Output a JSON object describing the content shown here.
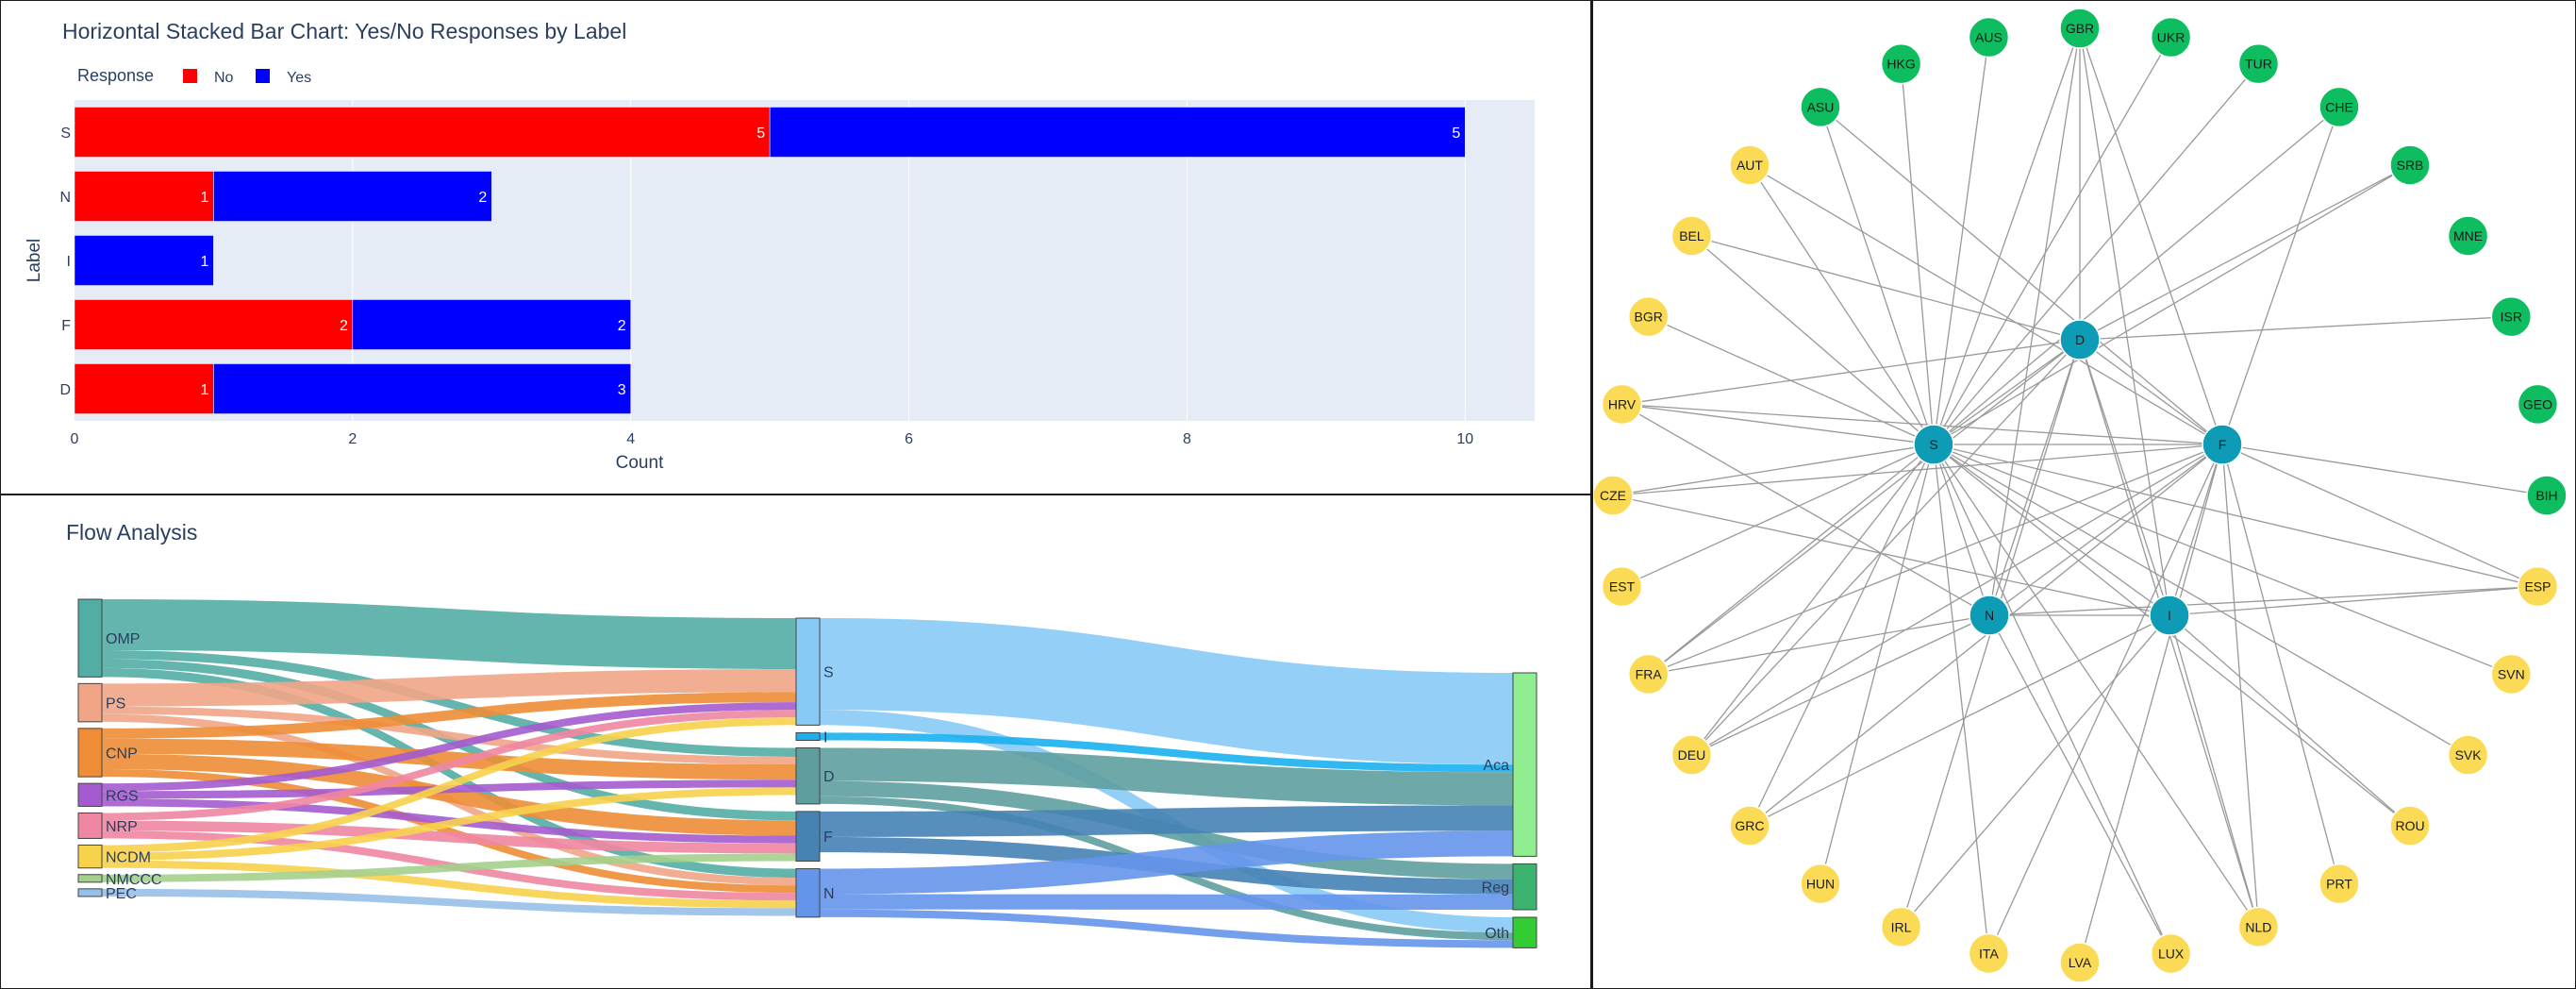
{
  "colors": {
    "no": "#ff0000",
    "yes": "#0000ff",
    "plot_bg": "#e5ecf6",
    "grid": "#ffffff",
    "text": "#2a3f5f",
    "edge": "#999999",
    "hub": "#0e9bb5",
    "green_node": "#0dbd5f",
    "yellow_node": "#fbdb55"
  },
  "bar_chart": {
    "title": "Horizontal Stacked Bar Chart: Yes/No Responses by Label",
    "legend_title": "Response",
    "xlabel": "Count",
    "ylabel": "Label"
  },
  "sankey": {
    "title": "Flow Analysis"
  },
  "chart_data": [
    {
      "type": "bar",
      "orientation": "horizontal",
      "stacked": true,
      "title": "Horizontal Stacked Bar Chart: Yes/No Responses by Label",
      "xlabel": "Count",
      "ylabel": "Label",
      "categories": [
        "S",
        "N",
        "I",
        "F",
        "D"
      ],
      "series": [
        {
          "name": "No",
          "values": [
            5,
            1,
            0,
            2,
            1
          ]
        },
        {
          "name": "Yes",
          "values": [
            5,
            2,
            1,
            2,
            3
          ]
        }
      ],
      "xlim": [
        0,
        10.5
      ],
      "xticks": [
        "0",
        "2",
        "4",
        "6",
        "8",
        "10"
      ],
      "legend": "top-left, horizontal",
      "grid": true
    },
    {
      "type": "sankey",
      "title": "Flow Analysis",
      "nodes": [
        {
          "id": "OMP",
          "label": "OMP",
          "color": "#52ada5"
        },
        {
          "id": "PS",
          "label": "PS",
          "color": "#f1a587"
        },
        {
          "id": "CNP",
          "label": "CNP",
          "color": "#ee8d36"
        },
        {
          "id": "RGS",
          "label": "RGS",
          "color": "#a45bcf"
        },
        {
          "id": "NRP",
          "label": "NRP",
          "color": "#ef86a2"
        },
        {
          "id": "NCDM",
          "label": "NCDM",
          "color": "#f7d24c"
        },
        {
          "id": "NMCCC",
          "label": "NMCCC",
          "color": "#a3d08c"
        },
        {
          "id": "PEC",
          "label": "PEC",
          "color": "#97c0e8"
        },
        {
          "id": "S",
          "label": "S",
          "color": "#87caf6"
        },
        {
          "id": "I",
          "label": "I",
          "color": "#1ab0ee"
        },
        {
          "id": "D",
          "label": "D",
          "color": "#5f9e9e"
        },
        {
          "id": "F",
          "label": "F",
          "color": "#4682b4"
        },
        {
          "id": "N",
          "label": "N",
          "color": "#6595eb"
        },
        {
          "id": "Aca",
          "label": "Aca",
          "color": "#90ee90"
        },
        {
          "id": "Reg",
          "label": "Reg",
          "color": "#3cb371"
        },
        {
          "id": "Oth",
          "label": "Oth",
          "color": "#32cd32"
        }
      ],
      "links": [
        {
          "source": "OMP",
          "target": "S",
          "value": 2
        },
        {
          "source": "OMP",
          "target": "D",
          "value": 0.35
        },
        {
          "source": "OMP",
          "target": "F",
          "value": 0.35
        },
        {
          "source": "OMP",
          "target": "N",
          "value": 0.35
        },
        {
          "source": "PS",
          "target": "S",
          "value": 0.9
        },
        {
          "source": "PS",
          "target": "D",
          "value": 0.3
        },
        {
          "source": "PS",
          "target": "N",
          "value": 0.3
        },
        {
          "source": "CNP",
          "target": "S",
          "value": 0.4
        },
        {
          "source": "CNP",
          "target": "D",
          "value": 0.6
        },
        {
          "source": "CNP",
          "target": "F",
          "value": 0.6
        },
        {
          "source": "CNP",
          "target": "N",
          "value": 0.3
        },
        {
          "source": "RGS",
          "target": "S",
          "value": 0.3
        },
        {
          "source": "RGS",
          "target": "D",
          "value": 0.3
        },
        {
          "source": "RGS",
          "target": "F",
          "value": 0.3
        },
        {
          "source": "NRP",
          "target": "S",
          "value": 0.3
        },
        {
          "source": "NRP",
          "target": "F",
          "value": 0.4
        },
        {
          "source": "NRP",
          "target": "N",
          "value": 0.3
        },
        {
          "source": "NCDM",
          "target": "S",
          "value": 0.3
        },
        {
          "source": "NCDM",
          "target": "D",
          "value": 0.3
        },
        {
          "source": "NCDM",
          "target": "N",
          "value": 0.3
        },
        {
          "source": "NMCCC",
          "target": "F",
          "value": 0.3
        },
        {
          "source": "PEC",
          "target": "N",
          "value": 0.3
        },
        {
          "source": "S",
          "target": "Aca",
          "value": 3.6
        },
        {
          "source": "S",
          "target": "Oth",
          "value": 0.6
        },
        {
          "source": "I",
          "target": "Aca",
          "value": 0.3
        },
        {
          "source": "D",
          "target": "Aca",
          "value": 1.3
        },
        {
          "source": "D",
          "target": "Reg",
          "value": 0.6
        },
        {
          "source": "D",
          "target": "Oth",
          "value": 0.3
        },
        {
          "source": "F",
          "target": "Aca",
          "value": 1.0
        },
        {
          "source": "F",
          "target": "Reg",
          "value": 0.6
        },
        {
          "source": "N",
          "target": "Aca",
          "value": 1.0
        },
        {
          "source": "N",
          "target": "Reg",
          "value": 0.6
        },
        {
          "source": "N",
          "target": "Oth",
          "value": 0.3
        }
      ]
    },
    {
      "type": "network",
      "layout": "circular, hubs in center",
      "hubs": [
        "S",
        "D",
        "F",
        "N",
        "I"
      ],
      "outer_nodes": [
        {
          "id": "GBR",
          "group": "green"
        },
        {
          "id": "UKR",
          "group": "green"
        },
        {
          "id": "TUR",
          "group": "green"
        },
        {
          "id": "CHE",
          "group": "green"
        },
        {
          "id": "SRB",
          "group": "green"
        },
        {
          "id": "MNE",
          "group": "green"
        },
        {
          "id": "ISR",
          "group": "green"
        },
        {
          "id": "GEO",
          "group": "green"
        },
        {
          "id": "BIH",
          "group": "green"
        },
        {
          "id": "ESP",
          "group": "yellow"
        },
        {
          "id": "SVN",
          "group": "yellow"
        },
        {
          "id": "SVK",
          "group": "yellow"
        },
        {
          "id": "ROU",
          "group": "yellow"
        },
        {
          "id": "PRT",
          "group": "yellow"
        },
        {
          "id": "NLD",
          "group": "yellow"
        },
        {
          "id": "LUX",
          "group": "yellow"
        },
        {
          "id": "LVA",
          "group": "yellow"
        },
        {
          "id": "ITA",
          "group": "yellow"
        },
        {
          "id": "IRL",
          "group": "yellow"
        },
        {
          "id": "HUN",
          "group": "yellow"
        },
        {
          "id": "GRC",
          "group": "yellow"
        },
        {
          "id": "DEU",
          "group": "yellow"
        },
        {
          "id": "FRA",
          "group": "yellow"
        },
        {
          "id": "EST",
          "group": "yellow"
        },
        {
          "id": "CZE",
          "group": "yellow"
        },
        {
          "id": "HRV",
          "group": "yellow"
        },
        {
          "id": "BGR",
          "group": "yellow"
        },
        {
          "id": "BEL",
          "group": "yellow"
        },
        {
          "id": "AUT",
          "group": "yellow"
        },
        {
          "id": "ASU",
          "group": "green"
        },
        {
          "id": "HKG",
          "group": "green"
        },
        {
          "id": "AUS",
          "group": "green"
        }
      ],
      "edges": [
        [
          "S",
          "GBR"
        ],
        [
          "S",
          "UKR"
        ],
        [
          "S",
          "TUR"
        ],
        [
          "S",
          "CHE"
        ],
        [
          "S",
          "SRB"
        ],
        [
          "S",
          "ESP"
        ],
        [
          "S",
          "SVN"
        ],
        [
          "S",
          "SVK"
        ],
        [
          "S",
          "ROU"
        ],
        [
          "S",
          "NLD"
        ],
        [
          "S",
          "ITA"
        ],
        [
          "S",
          "HUN"
        ],
        [
          "S",
          "GRC"
        ],
        [
          "S",
          "DEU"
        ],
        [
          "S",
          "FRA"
        ],
        [
          "S",
          "EST"
        ],
        [
          "S",
          "CZE"
        ],
        [
          "S",
          "HRV"
        ],
        [
          "S",
          "BGR"
        ],
        [
          "S",
          "BEL"
        ],
        [
          "S",
          "AUT"
        ],
        [
          "S",
          "ASU"
        ],
        [
          "S",
          "HKG"
        ],
        [
          "S",
          "AUS"
        ],
        [
          "S",
          "LUX"
        ],
        [
          "D",
          "GBR"
        ],
        [
          "D",
          "IRL"
        ],
        [
          "D",
          "SRB"
        ],
        [
          "D",
          "BEL"
        ],
        [
          "D",
          "HRV"
        ],
        [
          "D",
          "FRA"
        ],
        [
          "D",
          "DEU"
        ],
        [
          "D",
          "NLD"
        ],
        [
          "D",
          "ISR"
        ],
        [
          "F",
          "GBR"
        ],
        [
          "F",
          "CHE"
        ],
        [
          "F",
          "ASU"
        ],
        [
          "F",
          "ESP"
        ],
        [
          "F",
          "BIH"
        ],
        [
          "F",
          "PRT"
        ],
        [
          "F",
          "LVA"
        ],
        [
          "F",
          "GRC"
        ],
        [
          "F",
          "FRA"
        ],
        [
          "F",
          "CZE"
        ],
        [
          "F",
          "DEU"
        ],
        [
          "F",
          "NLD"
        ],
        [
          "F",
          "HRV"
        ],
        [
          "F",
          "ITA"
        ],
        [
          "F",
          "AUT"
        ],
        [
          "N",
          "ESP"
        ],
        [
          "N",
          "LUX"
        ],
        [
          "N",
          "DEU"
        ],
        [
          "N",
          "FRA"
        ],
        [
          "N",
          "HRV"
        ],
        [
          "N",
          "GBR"
        ],
        [
          "I",
          "ROU"
        ],
        [
          "I",
          "IRL"
        ],
        [
          "I",
          "GRC"
        ],
        [
          "I",
          "NLD"
        ],
        [
          "I",
          "GBR"
        ],
        [
          "I",
          "ESP"
        ],
        [
          "I",
          "CZE"
        ],
        [
          "S",
          "F"
        ],
        [
          "S",
          "D"
        ],
        [
          "S",
          "N"
        ],
        [
          "S",
          "I"
        ],
        [
          "D",
          "F"
        ],
        [
          "D",
          "N"
        ],
        [
          "D",
          "I"
        ],
        [
          "F",
          "N"
        ],
        [
          "F",
          "I"
        ],
        [
          "N",
          "I"
        ]
      ]
    }
  ]
}
